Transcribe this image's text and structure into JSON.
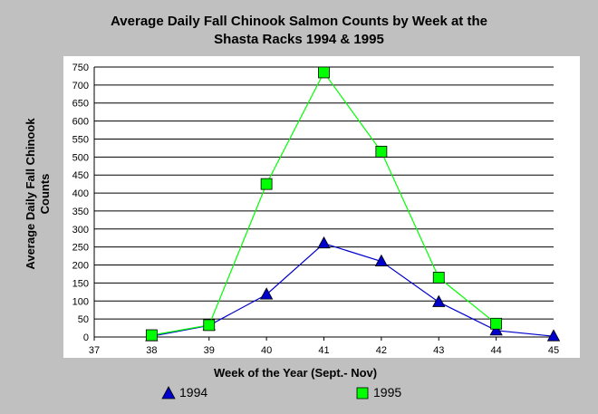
{
  "chart_data": {
    "type": "line",
    "title_lines": [
      "Average Daily Fall Chinook Salmon Counts by Week at the",
      "Shasta Racks 1994 & 1995"
    ],
    "xlabel": "Week of the Year (Sept.- Nov)",
    "ylabel_lines": [
      "Average Daily Fall Chinook",
      "Counts"
    ],
    "xlim": [
      37,
      45
    ],
    "ylim": [
      0,
      750
    ],
    "x_ticks": [
      "37",
      "38",
      "39",
      "40",
      "41",
      "42",
      "43",
      "44",
      "45"
    ],
    "y_ticks": [
      "0",
      "50",
      "100",
      "150",
      "200",
      "250",
      "300",
      "350",
      "400",
      "450",
      "500",
      "550",
      "600",
      "650",
      "700",
      "750"
    ],
    "grid": true,
    "legend_position": "bottom",
    "series": [
      {
        "name": "1994",
        "marker": "triangle",
        "line_color": "#0000cc",
        "marker_color": "#0000cc",
        "x": [
          38,
          39,
          40,
          41,
          42,
          43,
          44,
          45
        ],
        "y": [
          2,
          32,
          118,
          260,
          210,
          97,
          18,
          2
        ]
      },
      {
        "name": "1995",
        "marker": "square",
        "line_color": "#00ff00",
        "marker_color": "#00ff00",
        "x": [
          38,
          39,
          40,
          41,
          42,
          43,
          44
        ],
        "y": [
          5,
          33,
          425,
          735,
          515,
          165,
          37
        ]
      }
    ]
  }
}
